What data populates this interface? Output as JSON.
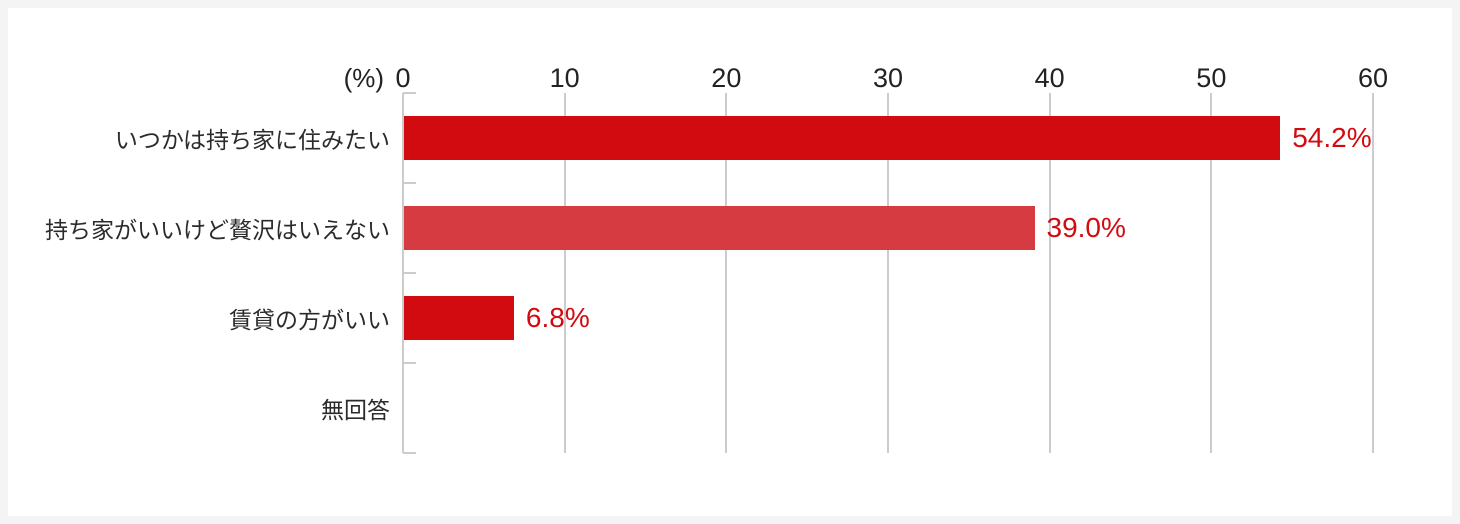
{
  "chart_data": {
    "type": "bar",
    "orientation": "horizontal",
    "title": "",
    "unit_label": "(%)",
    "categories": [
      "いつかは持ち家に住みたい",
      "持ち家がいいけど贅沢はいえない",
      "賃貸の方がいい",
      "無回答"
    ],
    "values": [
      54.2,
      39.0,
      6.8,
      0
    ],
    "value_labels": [
      "54.2%",
      "39.0%",
      "6.8%",
      ""
    ],
    "bar_colors": [
      "#d20b10",
      "#d73b42",
      "#d20b10",
      "#d20b10"
    ],
    "x_ticks": [
      "0",
      "10",
      "20",
      "30",
      "40",
      "50",
      "60"
    ],
    "x_tick_values": [
      0,
      10,
      20,
      30,
      40,
      50,
      60
    ],
    "xlim": [
      0,
      60
    ],
    "grid": true,
    "legend": "none"
  },
  "colors": {
    "canvas_bg": "#f4f4f4",
    "panel_bg": "#ffffff",
    "grid": "#cccccc",
    "bar_red": "#d20b10",
    "bar_light_red": "#d73b42",
    "value_label_red": "#d20b10",
    "text": "#2b2b2b"
  }
}
